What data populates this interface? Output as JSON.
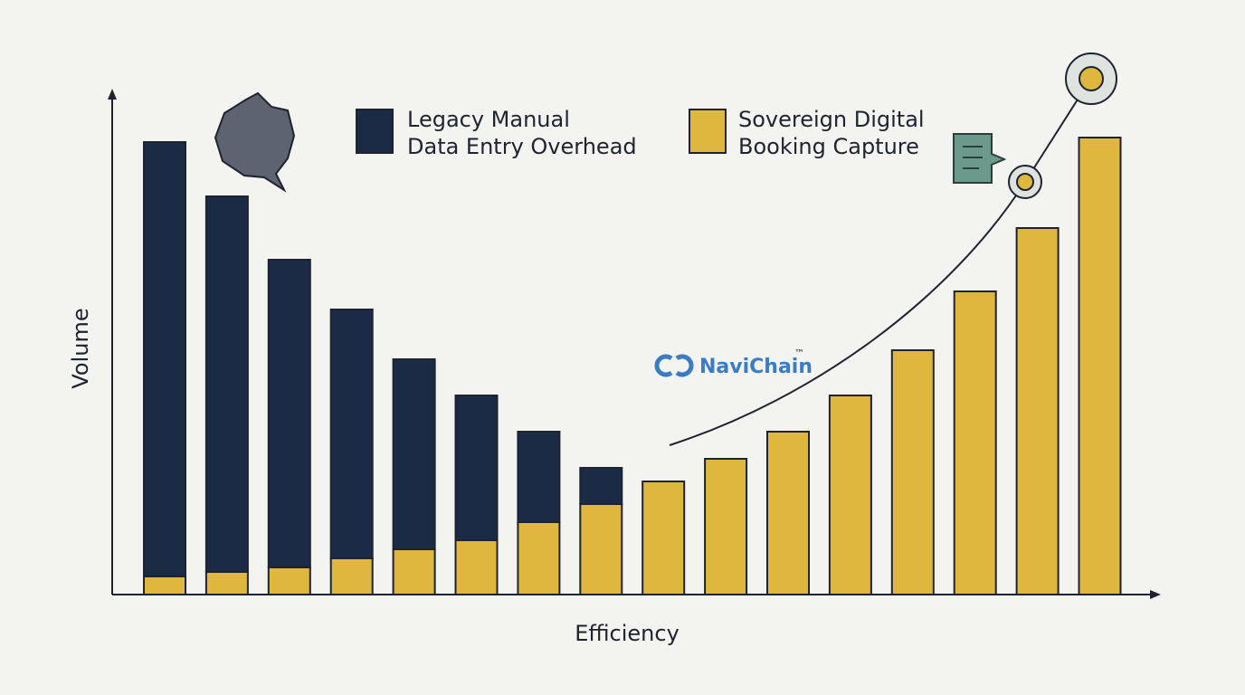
{
  "chart_data": {
    "type": "stacked_bar",
    "axis_labels": {
      "x": "Efficiency",
      "y": "Volume"
    },
    "logo": {
      "text": "NaviChain",
      "mark": "™"
    },
    "categories": [
      null,
      null,
      null,
      null,
      null,
      null,
      null,
      null,
      null,
      null,
      null,
      null,
      null,
      null,
      null,
      null
    ],
    "series": [
      {
        "name": "Legacy Manual\nData Entry Overhead",
        "color": "#1c2b45",
        "values": [
          96,
          83,
          68,
          55,
          42,
          32,
          20,
          8,
          0,
          0,
          0,
          0,
          0,
          0,
          0,
          0
        ]
      },
      {
        "name": "Sovereign Digital\nBooking Capture",
        "color": "#dfb73e",
        "values": [
          4,
          5,
          6,
          8,
          10,
          12,
          16,
          20,
          25,
          30,
          36,
          44,
          54,
          67,
          81,
          101
        ]
      }
    ],
    "ylim": [
      0,
      110
    ]
  }
}
